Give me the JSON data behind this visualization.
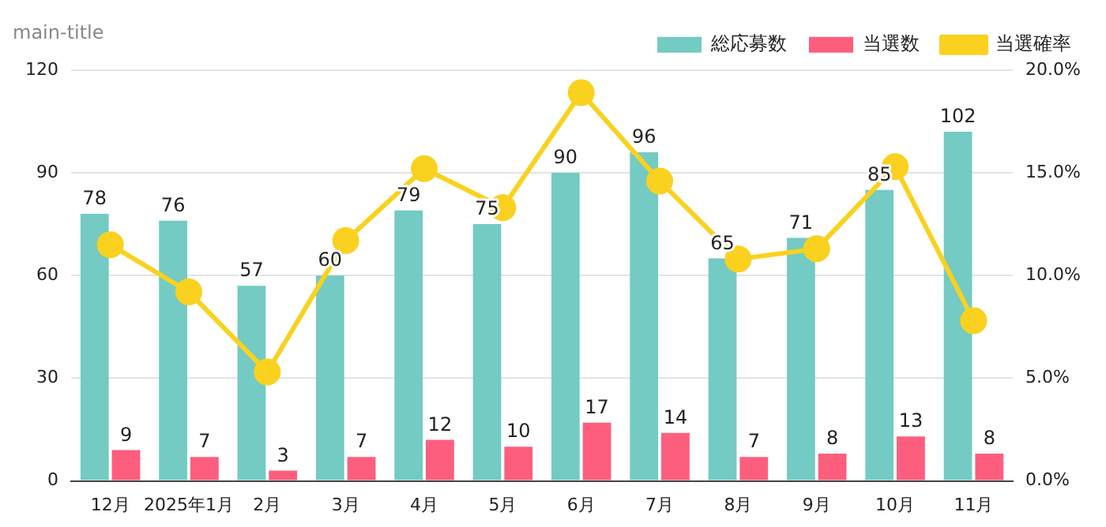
{
  "chart_data": {
    "type": "bar",
    "title": "main-title",
    "categories": [
      "12月",
      "2025年1月",
      "2月",
      "3月",
      "4月",
      "5月",
      "6月",
      "7月",
      "8月",
      "9月",
      "10月",
      "11月"
    ],
    "series": [
      {
        "name": "総応募数",
        "color": "#73cbc3",
        "values": [
          78,
          76,
          57,
          60,
          79,
          75,
          90,
          96,
          65,
          71,
          85,
          102
        ],
        "value_labels": [
          "78",
          "76",
          "57",
          "60",
          "79",
          "75",
          "90",
          "96",
          "65",
          "71",
          "85",
          "102"
        ]
      },
      {
        "name": "当選数",
        "color": "#fd5e7e",
        "values": [
          9,
          7,
          3,
          7,
          12,
          10,
          17,
          14,
          7,
          8,
          13,
          8
        ],
        "value_labels": [
          "9",
          "7",
          "3",
          "7",
          "12",
          "10",
          "17",
          "14",
          "7",
          "8",
          "13",
          "8"
        ]
      },
      {
        "name": "当選確率",
        "type": "line",
        "axis": "y2",
        "color": "#fad11f",
        "values": [
          11.5,
          9.2,
          5.3,
          11.7,
          15.2,
          13.3,
          18.9,
          14.6,
          10.8,
          11.3,
          15.3,
          7.8
        ]
      }
    ],
    "ylim": [
      0,
      120
    ],
    "yticks": [
      0,
      30,
      60,
      90,
      120
    ],
    "y2lim": [
      0,
      20
    ],
    "y2ticks": [
      {
        "value": 0,
        "label": "0.0%"
      },
      {
        "value": 5,
        "label": "5.0%"
      },
      {
        "value": 10,
        "label": "10.0%"
      },
      {
        "value": 15,
        "label": "15.0%"
      },
      {
        "value": 20,
        "label": "20.0%"
      }
    ],
    "grid": "y",
    "legend": "top right",
    "marker": "circle",
    "line_style": "solid"
  }
}
